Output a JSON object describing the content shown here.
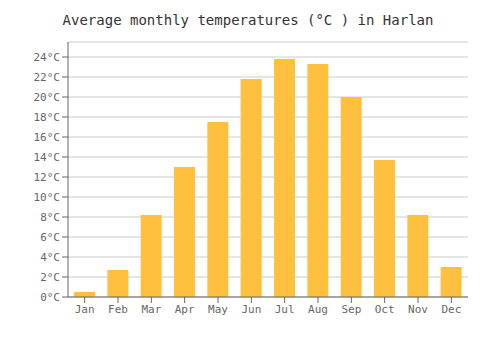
{
  "chart_data": {
    "type": "bar",
    "title": "Average monthly temperatures (°C ) in Harlan",
    "categories": [
      "Jan",
      "Feb",
      "Mar",
      "Apr",
      "May",
      "Jun",
      "Jul",
      "Aug",
      "Sep",
      "Oct",
      "Nov",
      "Dec"
    ],
    "values": [
      0.5,
      2.7,
      8.2,
      13.0,
      17.5,
      21.8,
      23.8,
      23.3,
      20.0,
      13.7,
      8.2,
      3.0
    ],
    "color": "#FFC040",
    "ylim": [
      0,
      25.5
    ],
    "yticks": [
      {
        "value": 0,
        "label": "0°C"
      },
      {
        "value": 2,
        "label": "2°C"
      },
      {
        "value": 4,
        "label": "4°C"
      },
      {
        "value": 6,
        "label": "6°C"
      },
      {
        "value": 8,
        "label": "8°C"
      },
      {
        "value": 10,
        "label": "10°C"
      },
      {
        "value": 12,
        "label": "12°C"
      },
      {
        "value": 14,
        "label": "14°C"
      },
      {
        "value": 16,
        "label": "16°C"
      },
      {
        "value": 18,
        "label": "18°C"
      },
      {
        "value": 20,
        "label": "20°C"
      },
      {
        "value": 22,
        "label": "22°C"
      },
      {
        "value": 24,
        "label": "24°C"
      }
    ],
    "grid": true
  }
}
